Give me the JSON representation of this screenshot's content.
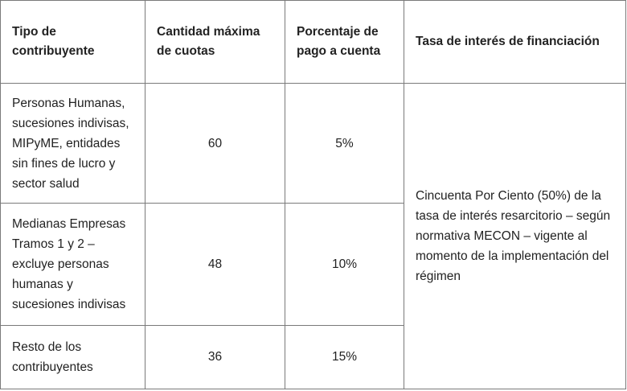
{
  "table": {
    "headers": [
      "Tipo de contribuyente",
      "Cantidad máxima de cuotas",
      "Porcentaje de pago a cuenta",
      "Tasa de interés de financiación"
    ],
    "rows": [
      {
        "tipo": "Personas Humanas, sucesiones indivisas, MIPyME, entidades sin fines de lucro y sector salud",
        "cuotas": "60",
        "porcentaje": "5%"
      },
      {
        "tipo": "Medianas Empresas Tramos 1 y 2 – excluye personas humanas y sucesiones indivisas",
        "cuotas": "48",
        "porcentaje": "10%"
      },
      {
        "tipo": "Resto de los contribuyentes",
        "cuotas": "36",
        "porcentaje": "15%"
      }
    ],
    "tasa": "Cincuenta Por Ciento (50%) de la tasa de interés resarcitorio – según normativa MECON – vigente al momento de la implementación del régimen"
  }
}
